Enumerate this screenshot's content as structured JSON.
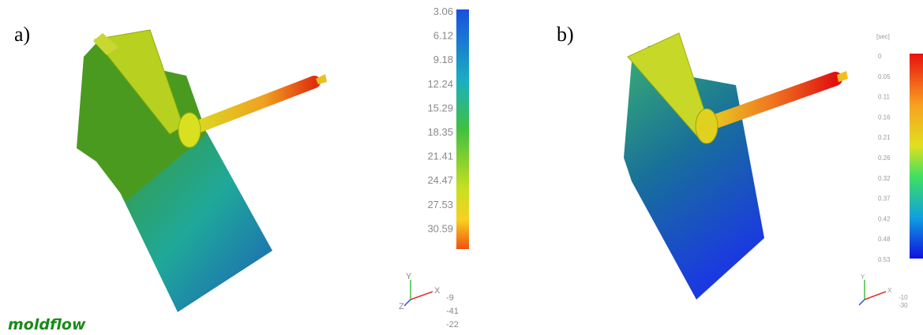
{
  "panel_a": {
    "label": "a)",
    "scale_labels": [
      "3.06",
      "6.12",
      "9.18",
      "12.24",
      "15.29",
      "18.35",
      "21.41",
      "24.47",
      "27.53",
      "30.59"
    ],
    "triad": {
      "y": "Y",
      "x": "X",
      "z": "Z"
    },
    "angles": [
      "-9",
      "-41",
      "-22"
    ]
  },
  "panel_b": {
    "label": "b)",
    "scale_unit": "[sec]",
    "scale_labels": [
      "0",
      "0.05",
      "0.11",
      "0.16",
      "0.21",
      "0.26",
      "0.32",
      "0.37",
      "0.42",
      "0.48",
      "0.53"
    ],
    "triad": {
      "y": "Y",
      "x": "X"
    },
    "angles": [
      "-10",
      "-30"
    ]
  },
  "logo": "moldflow"
}
